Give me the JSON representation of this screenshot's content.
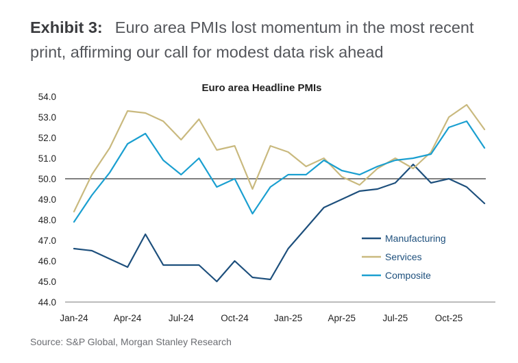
{
  "header": {
    "exhibit": "Exhibit 3:",
    "title": "Euro area PMIs lost momentum in the most recent print, affirming our call for modest data risk ahead"
  },
  "source": "Source: S&P Global, Morgan Stanley Research",
  "colors": {
    "manufacturing": "#1d4f7c",
    "services": "#c9b97e",
    "composite": "#1a9fd0",
    "reference_line": "#555555",
    "axis": "#777777",
    "text": "#222222"
  },
  "chart_data": {
    "type": "line",
    "title": "Euro area Headline PMIs",
    "xlabel": "",
    "ylabel": "",
    "ylim": [
      44.0,
      54.0
    ],
    "yticks": [
      44.0,
      45.0,
      46.0,
      47.0,
      48.0,
      49.0,
      50.0,
      51.0,
      52.0,
      53.0,
      54.0
    ],
    "ytick_labels": [
      "44.0",
      "45.0",
      "46.0",
      "47.0",
      "48.0",
      "49.0",
      "50.0",
      "51.0",
      "52.0",
      "53.0",
      "54.0"
    ],
    "x": [
      "Jan-24",
      "Feb-24",
      "Mar-24",
      "Apr-24",
      "May-24",
      "Jun-24",
      "Jul-24",
      "Aug-24",
      "Sep-24",
      "Oct-24",
      "Nov-24",
      "Dec-24",
      "Jan-25",
      "Feb-25",
      "Mar-25",
      "Apr-25",
      "May-25",
      "Jun-25",
      "Jul-25",
      "Aug-25",
      "Sep-25",
      "Oct-25",
      "Nov-25",
      "Dec-25"
    ],
    "xtick_labels": [
      "Jan-24",
      "Apr-24",
      "Jul-24",
      "Oct-24",
      "Jan-25",
      "Apr-25",
      "Jul-25",
      "Oct-25"
    ],
    "xtick_indices": [
      0,
      3,
      6,
      9,
      12,
      15,
      18,
      21
    ],
    "reference_line": 50.0,
    "legend_position": "right",
    "series": [
      {
        "name": "Manufacturing",
        "color_key": "manufacturing",
        "values": [
          46.6,
          46.5,
          46.1,
          45.7,
          47.3,
          45.8,
          45.8,
          45.8,
          45.0,
          46.0,
          45.2,
          45.1,
          46.6,
          47.6,
          48.6,
          49.0,
          49.4,
          49.5,
          49.8,
          50.7,
          49.8,
          50.0,
          49.6,
          48.8
        ]
      },
      {
        "name": "Services",
        "color_key": "services",
        "values": [
          48.4,
          50.2,
          51.5,
          53.3,
          53.2,
          52.8,
          51.9,
          52.9,
          51.4,
          51.6,
          49.5,
          51.6,
          51.3,
          50.6,
          51.0,
          50.1,
          49.7,
          50.5,
          51.0,
          50.5,
          51.3,
          53.0,
          53.6,
          52.4
        ]
      },
      {
        "name": "Composite",
        "color_key": "composite",
        "values": [
          47.9,
          49.2,
          50.3,
          51.7,
          52.2,
          50.9,
          50.2,
          51.0,
          49.6,
          50.0,
          48.3,
          49.6,
          50.2,
          50.2,
          50.9,
          50.4,
          50.2,
          50.6,
          50.9,
          51.0,
          51.2,
          52.5,
          52.8,
          51.5
        ]
      }
    ]
  }
}
